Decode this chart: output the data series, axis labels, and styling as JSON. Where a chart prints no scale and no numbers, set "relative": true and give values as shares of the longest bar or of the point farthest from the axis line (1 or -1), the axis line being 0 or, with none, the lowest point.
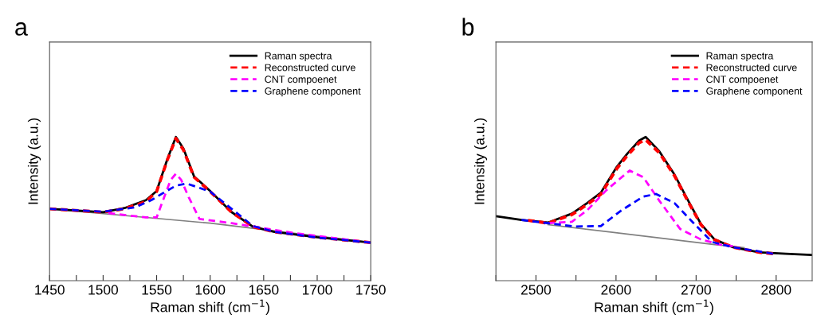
{
  "chart_data": [
    {
      "type": "line",
      "title": "a",
      "xlabel": "Raman shift (cm$^{−1}$)",
      "ylabel": "Intensity (a.u.)",
      "relative": true,
      "tick_labels": "x",
      "legend": "top right",
      "grid": false,
      "xlim": [
        1450,
        1750
      ],
      "xticks": [
        1450,
        {
          "value": 1475,
          "label": null
        },
        1500,
        {
          "value": 1525,
          "label": null
        },
        1550,
        {
          "value": 1575,
          "label": null
        },
        1600,
        {
          "value": 1625,
          "label": null
        },
        1650,
        {
          "value": 1675,
          "label": null
        },
        1700,
        {
          "value": 1725,
          "label": null
        },
        1750
      ],
      "series": [
        {
          "color": "#808080",
          "line_style": "solid",
          "x": [
            1450,
            1600,
            1750
          ],
          "values": [
            0.5,
            0.4,
            0.265
          ]
        },
        {
          "name": "Raman spectra",
          "color": "#000000",
          "line_style": "solid",
          "x": [
            1450,
            1500,
            1520,
            1540,
            1550,
            1560,
            1568,
            1575,
            1585,
            1600,
            1620,
            1640,
            1660,
            1700,
            1750
          ],
          "values": [
            0.5,
            0.477,
            0.505,
            0.56,
            0.624,
            0.845,
            1.0,
            0.919,
            0.725,
            0.624,
            0.477,
            0.376,
            0.339,
            0.302,
            0.265
          ]
        },
        {
          "name": "Reconstructed curve",
          "color": "#ff0000",
          "line_style": "dashed",
          "x": [
            1450,
            1500,
            1520,
            1540,
            1550,
            1560,
            1568,
            1575,
            1585,
            1600,
            1620,
            1640,
            1660,
            1700,
            1750
          ],
          "values": [
            0.5,
            0.477,
            0.5,
            0.55,
            0.62,
            0.84,
            0.99,
            0.91,
            0.72,
            0.62,
            0.477,
            0.376,
            0.339,
            0.302,
            0.265
          ]
        },
        {
          "name": "CNT compoenet",
          "color": "#ff00ff",
          "line_style": "dashed",
          "x": [
            1505,
            1540,
            1550,
            1558,
            1563,
            1568,
            1573,
            1580,
            1590,
            1620,
            1680,
            1750
          ],
          "values": [
            0.47,
            0.44,
            0.44,
            0.6,
            0.7,
            0.744,
            0.7,
            0.58,
            0.43,
            0.4,
            0.33,
            0.265
          ]
        },
        {
          "name": "Graphene component",
          "color": "#0000ff",
          "line_style": "dashed",
          "x": [
            1450,
            1500,
            1530,
            1545,
            1555,
            1568,
            1578,
            1600,
            1620,
            1640,
            1660,
            1700,
            1750
          ],
          "values": [
            0.5,
            0.48,
            0.51,
            0.56,
            0.605,
            0.661,
            0.676,
            0.62,
            0.5,
            0.38,
            0.34,
            0.3,
            0.265
          ]
        }
      ]
    },
    {
      "type": "line",
      "title": "b",
      "xlabel": "Raman shift (cm$^{−1}$)",
      "ylabel": "Intensity (a.u.)",
      "relative": true,
      "tick_labels": "x",
      "legend": "top right",
      "grid": false,
      "xlim": [
        2450,
        2845
      ],
      "xticks": [
        {
          "value": 2450,
          "label": null
        },
        2500,
        {
          "value": 2550,
          "label": null
        },
        2600,
        {
          "value": 2650,
          "label": null
        },
        2700,
        {
          "value": 2750,
          "label": null
        },
        2800
      ],
      "series": [
        {
          "color": "#808080",
          "line_style": "solid",
          "x": [
            2515,
            2723,
            2760
          ],
          "values": [
            0.39,
            0.251,
            0.23
          ]
        },
        {
          "name": "Raman spectra",
          "color": "#000000",
          "line_style": "solid",
          "x": [
            2450,
            2482,
            2515,
            2545,
            2564,
            2581,
            2601,
            2614,
            2629,
            2637,
            2654,
            2673,
            2690,
            2706,
            2723,
            2746,
            2779,
            2812,
            2844
          ],
          "values": [
            0.449,
            0.422,
            0.404,
            0.467,
            0.54,
            0.612,
            0.792,
            0.883,
            0.975,
            1.0,
            0.9,
            0.738,
            0.558,
            0.395,
            0.287,
            0.233,
            0.197,
            0.188,
            0.179
          ]
        },
        {
          "name": "Reconstructed curve",
          "color": "#ff0000",
          "line_style": "dashed",
          "x": [
            2490,
            2515,
            2545,
            2564,
            2581,
            2601,
            2614,
            2629,
            2637,
            2654,
            2673,
            2690,
            2706,
            2723,
            2746,
            2779,
            2796
          ],
          "values": [
            0.42,
            0.4,
            0.46,
            0.53,
            0.6,
            0.78,
            0.87,
            0.96,
            0.98,
            0.89,
            0.73,
            0.55,
            0.39,
            0.285,
            0.233,
            0.197,
            0.188
          ]
        },
        {
          "name": "CNT compoenet",
          "color": "#ff00ff",
          "line_style": "dashed",
          "x": [
            2515,
            2545,
            2564,
            2588,
            2617,
            2634,
            2654,
            2680,
            2706,
            2730,
            2746
          ],
          "values": [
            0.4,
            0.41,
            0.49,
            0.63,
            0.766,
            0.72,
            0.557,
            0.36,
            0.287,
            0.251,
            0.24
          ]
        },
        {
          "name": "Graphene component",
          "color": "#0000ff",
          "line_style": "dashed",
          "x": [
            2482,
            2515,
            2548,
            2581,
            2607,
            2634,
            2650,
            2673,
            2697,
            2720,
            2746,
            2796
          ],
          "values": [
            0.422,
            0.4,
            0.377,
            0.38,
            0.49,
            0.585,
            0.603,
            0.54,
            0.4,
            0.269,
            0.233,
            0.188
          ]
        }
      ]
    }
  ]
}
